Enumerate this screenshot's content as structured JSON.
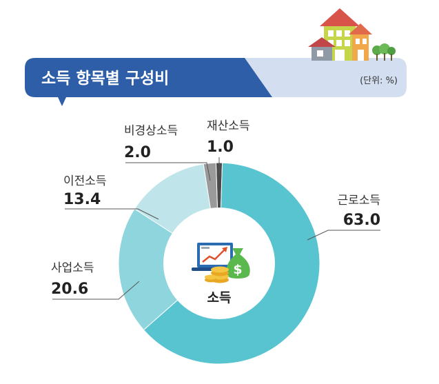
{
  "header": {
    "title": "소득 항목별 구성비",
    "unit": "(단위: %)"
  },
  "center_label": "소득",
  "colors": {
    "title_band": "#2f5ea8",
    "band_light": "#d3dff0",
    "근로소득": "#58c4d0",
    "사업소득": "#8fd5dd",
    "이전소득": "#bfe5ea",
    "비경상소득": "#9a9a9a",
    "재산소득": "#4a4a4a"
  },
  "icons": [
    "house-illustration-icon",
    "monitor-chart-icon",
    "money-bag-icon",
    "coin-stack-icon"
  ],
  "chart_data": {
    "type": "pie",
    "title": "소득 항목별 구성비",
    "unit": "(단위: %)",
    "slices": [
      {
        "label": "근로소득",
        "value": 63.0,
        "value_text": "63.0"
      },
      {
        "label": "사업소득",
        "value": 20.6,
        "value_text": "20.6"
      },
      {
        "label": "이전소득",
        "value": 13.4,
        "value_text": "13.4"
      },
      {
        "label": "비경상소득",
        "value": 2.0,
        "value_text": "2.0"
      },
      {
        "label": "재산소득",
        "value": 1.0,
        "value_text": "1.0"
      }
    ]
  }
}
